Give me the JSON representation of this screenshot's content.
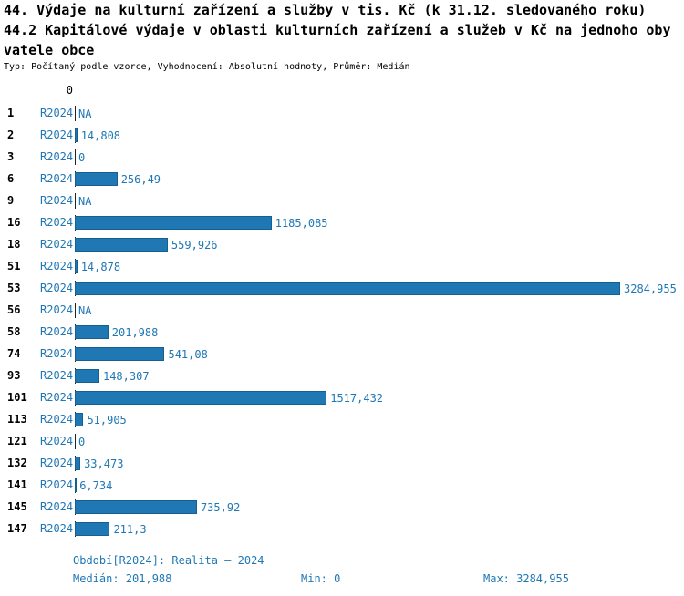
{
  "title": {
    "line1": "44. Výdaje na kulturní zařízení a služby v tis. Kč (k 31.12. sledovaného roku)",
    "line2": "44.2 Kapitálové výdaje v oblasti kulturních zařízení a služeb v Kč na jednoho oby",
    "line3": "vatele obce",
    "subtitle": "Typ: Počítaný podle vzorce, Vyhodnocení: Absolutní hodnoty, Průměr: Medián"
  },
  "chart_data": {
    "type": "bar",
    "orientation": "horizontal",
    "axis_zero_label": "0",
    "series_label": "R2024",
    "categories": [
      "1",
      "2",
      "3",
      "6",
      "9",
      "16",
      "18",
      "51",
      "53",
      "56",
      "58",
      "74",
      "93",
      "101",
      "113",
      "121",
      "132",
      "141",
      "145",
      "147"
    ],
    "values": [
      null,
      14.808,
      0,
      256.49,
      null,
      1185.085,
      559.926,
      14.878,
      3284.955,
      null,
      201.988,
      541.08,
      148.307,
      1517.432,
      51.905,
      0,
      33.473,
      6.734,
      735.92,
      211.3
    ],
    "value_labels": [
      "NA",
      "14,808",
      "0",
      "256,49",
      "NA",
      "1185,085",
      "559,926",
      "14,878",
      "3284,955",
      "NA",
      "201,988",
      "541,08",
      "148,307",
      "1517,432",
      "51,905",
      "0",
      "33,473",
      "6,734",
      "735,92",
      "211,3"
    ],
    "xlim": [
      0,
      3284.955
    ],
    "median_value": 201.988,
    "bar_color": "#1f77b4",
    "grid": false,
    "legend": "none"
  },
  "footer": {
    "period": "Období[R2024]: Realita – 2024",
    "median": "Medián: 201,988",
    "min": "Min: 0",
    "max": "Max: 3284,955"
  }
}
